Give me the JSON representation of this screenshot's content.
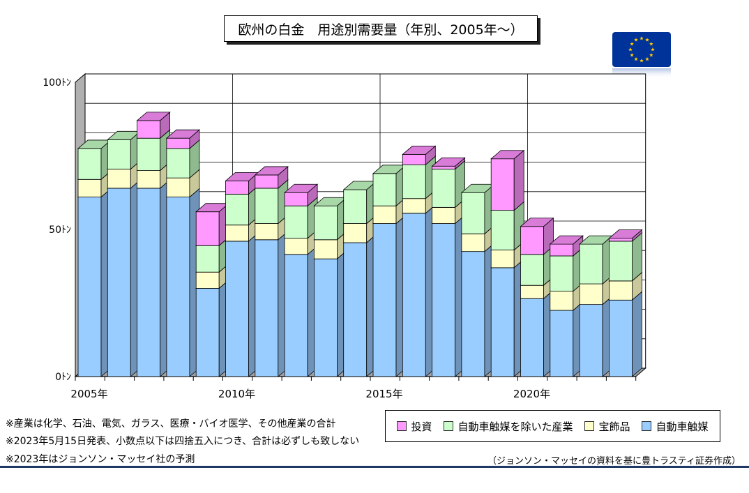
{
  "title": "欧州の白金　用途別需要量（年別、2005年～）",
  "flag_icon": "eu-flag-icon",
  "chart_data": {
    "type": "bar",
    "stacked": true,
    "three_d": true,
    "categories": [
      "2005",
      "2006",
      "2007",
      "2008",
      "2009",
      "2010",
      "2011",
      "2012",
      "2013",
      "2014",
      "2015",
      "2016",
      "2017",
      "2018",
      "2019",
      "2020",
      "2021",
      "2022",
      "2023"
    ],
    "x_tick_labels": [
      {
        "label": "2005年",
        "category": "2005"
      },
      {
        "label": "2010年",
        "category": "2010"
      },
      {
        "label": "2015年",
        "category": "2015"
      },
      {
        "label": "2020年",
        "category": "2020"
      }
    ],
    "y_tick_labels": [
      "0ﾄﾝ",
      "50ﾄﾝ",
      "100ﾄﾝ"
    ],
    "y_ticks": [
      0,
      50,
      100
    ],
    "ylim": [
      0,
      100
    ],
    "grid": true,
    "series": [
      {
        "name": "自動車触媒",
        "color": "#99ccff",
        "side": "#6f93b8",
        "top": "#c2e0ff",
        "values": [
          61,
          64,
          64,
          61,
          30,
          46,
          46.5,
          41.5,
          40,
          45.5,
          52,
          55.5,
          52,
          42.5,
          37,
          26.5,
          22.5,
          24.5,
          26
        ]
      },
      {
        "name": "宝飾品",
        "color": "#ffffcc",
        "side": "#c8c89a",
        "top": "#ffffe6",
        "values": [
          6,
          6.5,
          6,
          6.5,
          5.5,
          5.5,
          5.5,
          5.5,
          6.5,
          6.5,
          6,
          5,
          5.5,
          6,
          6,
          4.5,
          6.5,
          7,
          6.5
        ]
      },
      {
        "name": "自動車触媒を除いた産業",
        "color": "#ccffcc",
        "side": "#8fb98f",
        "top": "#a8d8a8",
        "values": [
          10.5,
          10,
          11,
          10,
          9,
          10.5,
          12,
          11,
          11.5,
          11.5,
          11,
          11.5,
          13,
          14,
          13.5,
          10.5,
          12,
          13.5,
          13.5
        ]
      },
      {
        "name": "投資",
        "color": "#ff99ff",
        "side": "#b96ab9",
        "top": "#d87cd8",
        "values": [
          0,
          0,
          6,
          3.5,
          11.5,
          4.5,
          4.5,
          4.5,
          0,
          0,
          0,
          3.5,
          1,
          0,
          17.5,
          9.5,
          4,
          0,
          1
        ]
      }
    ],
    "legend_order": [
      "投資",
      "自動車触媒を除いた産業",
      "宝飾品",
      "自動車触媒"
    ],
    "legend_position": "bottom-right"
  },
  "notes": [
    "※産業は化学、石油、電気、ガラス、医療・バイオ医学、その他産業の合計",
    "※2023年5月15日発表、小数点以下は四捨五入につき、合計は必ずしも致しない",
    "※2023年はジョンソン・マッセイ社の予測"
  ],
  "source": "（ジョンソン・マッセイの資料を基に豊トラスティ証券作成）",
  "colors": {
    "rule": "#1f3864",
    "flag_blue": "#003399",
    "flag_star": "#ffcc00"
  }
}
